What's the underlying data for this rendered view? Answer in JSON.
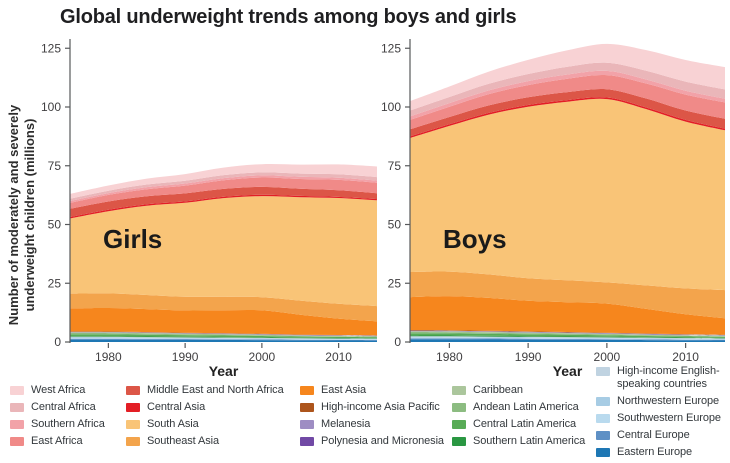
{
  "title": "Global underweight trends among boys and girls",
  "axes": {
    "ylabel_lines": [
      "Number of moderately and severely",
      "underweight children (millions)"
    ],
    "xlabel": "Year"
  },
  "chart_data": {
    "type": "area",
    "stacked": true,
    "title": "Global underweight trends among boys and girls",
    "xlabel": "Year",
    "ylabel": "Number of moderately and severely underweight children (millions)",
    "grid": false,
    "legend_position": "bottom",
    "x": [
      1975,
      1980,
      1985,
      1990,
      1995,
      2000,
      2005,
      2010,
      2015
    ],
    "x_ticks": [
      1980,
      1990,
      2000,
      2010
    ],
    "y_ticks": [
      0,
      25,
      50,
      75,
      100,
      125
    ],
    "ylim": [
      0,
      130
    ],
    "stack_order": "regions listed top-of-stack first; last region is bottom of stack",
    "regions": [
      {
        "name": "West Africa",
        "color": "#f8d2d4"
      },
      {
        "name": "Central Africa",
        "color": "#eab6b9"
      },
      {
        "name": "Southern Africa",
        "color": "#f2a2a8"
      },
      {
        "name": "East Africa",
        "color": "#f08a88"
      },
      {
        "name": "Middle East and North Africa",
        "color": "#dc5647"
      },
      {
        "name": "Central Asia",
        "color": "#e31e25"
      },
      {
        "name": "South Asia",
        "color": "#f9c477"
      },
      {
        "name": "Southeast Asia",
        "color": "#f3a44c"
      },
      {
        "name": "East Asia",
        "color": "#f6861d"
      },
      {
        "name": "High-income Asia Pacific",
        "color": "#ad551c"
      },
      {
        "name": "Melanesia",
        "color": "#9e8dc3"
      },
      {
        "name": "Polynesia and Micronesia",
        "color": "#7149a5"
      },
      {
        "name": "Caribbean",
        "color": "#abc69c"
      },
      {
        "name": "Andean Latin America",
        "color": "#8cbc81"
      },
      {
        "name": "Central Latin America",
        "color": "#58ab56"
      },
      {
        "name": "Southern Latin America",
        "color": "#2a9742"
      },
      {
        "name": "High-income English-speaking countries",
        "color": "#c0d3e1"
      },
      {
        "name": "Northwestern Europe",
        "color": "#a7cce4"
      },
      {
        "name": "Southwestern Europe",
        "color": "#b9daee"
      },
      {
        "name": "Central Europe",
        "color": "#5e90c5"
      },
      {
        "name": "Eastern Europe",
        "color": "#1e77b4"
      }
    ],
    "charts": [
      {
        "label": "Girls",
        "values": [
          [
            2.0,
            2.2,
            2.5,
            2.8,
            3.2,
            3.5,
            3.8,
            4.2,
            4.5
          ],
          [
            1.0,
            1.0,
            1.1,
            1.2,
            1.3,
            1.3,
            1.4,
            1.5,
            1.5
          ],
          [
            0.8,
            0.8,
            0.9,
            0.9,
            0.9,
            0.9,
            0.9,
            0.9,
            0.9
          ],
          [
            2.5,
            2.8,
            3.0,
            3.3,
            3.7,
            4.0,
            4.2,
            4.4,
            4.5
          ],
          [
            3.5,
            3.5,
            3.4,
            3.4,
            3.3,
            3.3,
            3.0,
            2.8,
            2.5
          ],
          [
            0.6,
            0.6,
            0.6,
            0.6,
            0.6,
            0.6,
            0.55,
            0.5,
            0.5
          ],
          [
            32,
            35,
            38,
            40,
            42,
            43,
            44,
            45,
            45
          ],
          [
            6.3,
            6.2,
            6.0,
            5.8,
            5.7,
            5.6,
            6.0,
            6.3,
            6.5
          ],
          [
            9.8,
            10.0,
            9.8,
            9.5,
            9.8,
            10.0,
            8.5,
            7.0,
            6.0
          ],
          [
            0.2,
            0.2,
            0.18,
            0.15,
            0.13,
            0.12,
            0.1,
            0.1,
            0.1
          ],
          [
            0.15,
            0.15,
            0.16,
            0.17,
            0.18,
            0.19,
            0.2,
            0.2,
            0.2
          ],
          [
            0.05,
            0.05,
            0.05,
            0.05,
            0.05,
            0.05,
            0.05,
            0.05,
            0.05
          ],
          [
            0.3,
            0.3,
            0.28,
            0.26,
            0.24,
            0.22,
            0.2,
            0.18,
            0.15
          ],
          [
            0.5,
            0.5,
            0.45,
            0.4,
            0.38,
            0.35,
            0.3,
            0.28,
            0.25
          ],
          [
            0.8,
            0.8,
            0.75,
            0.7,
            0.65,
            0.6,
            0.5,
            0.45,
            0.4
          ],
          [
            0.3,
            0.3,
            0.28,
            0.26,
            0.24,
            0.22,
            0.2,
            0.2,
            0.2
          ],
          [
            0.3,
            0.3,
            0.3,
            0.28,
            0.28,
            0.26,
            0.25,
            0.25,
            0.25
          ],
          [
            0.2,
            0.2,
            0.18,
            0.17,
            0.16,
            0.15,
            0.15,
            0.14,
            0.14
          ],
          [
            0.3,
            0.28,
            0.26,
            0.25,
            0.24,
            0.22,
            0.2,
            0.2,
            0.2
          ],
          [
            0.4,
            0.4,
            0.38,
            0.36,
            0.33,
            0.3,
            0.28,
            0.26,
            0.25
          ],
          [
            1.0,
            1.0,
            0.95,
            0.9,
            0.85,
            0.8,
            0.7,
            0.65,
            0.6
          ]
        ]
      },
      {
        "label": "Boys",
        "values": [
          [
            4.0,
            4.5,
            5.2,
            6.0,
            7.0,
            8.0,
            8.8,
            9.2,
            9.5
          ],
          [
            2.5,
            2.6,
            2.8,
            3.0,
            3.3,
            3.5,
            3.7,
            3.9,
            4.0
          ],
          [
            1.5,
            1.5,
            1.6,
            1.7,
            1.8,
            1.8,
            1.7,
            1.6,
            1.5
          ],
          [
            4.0,
            4.4,
            4.8,
            5.2,
            5.7,
            6.0,
            6.4,
            6.8,
            7.0
          ],
          [
            3.0,
            3.1,
            3.2,
            3.3,
            3.4,
            3.5,
            3.8,
            4.0,
            4.2
          ],
          [
            0.7,
            0.7,
            0.7,
            0.7,
            0.7,
            0.7,
            0.7,
            0.7,
            0.7
          ],
          [
            57,
            62,
            68,
            73,
            76,
            78,
            75,
            71,
            68
          ],
          [
            10.7,
            10.4,
            10.0,
            9.6,
            9.3,
            9.0,
            10.0,
            11.0,
            12.0
          ],
          [
            14.0,
            14.5,
            14.0,
            13.0,
            12.7,
            12.4,
            10.5,
            8.5,
            7.0
          ],
          [
            0.25,
            0.25,
            0.22,
            0.2,
            0.18,
            0.15,
            0.13,
            0.12,
            0.1
          ],
          [
            0.2,
            0.2,
            0.21,
            0.22,
            0.23,
            0.24,
            0.25,
            0.25,
            0.25
          ],
          [
            0.06,
            0.06,
            0.06,
            0.06,
            0.06,
            0.06,
            0.06,
            0.06,
            0.06
          ],
          [
            0.35,
            0.34,
            0.32,
            0.3,
            0.28,
            0.26,
            0.24,
            0.2,
            0.18
          ],
          [
            0.55,
            0.54,
            0.5,
            0.46,
            0.42,
            0.4,
            0.35,
            0.3,
            0.28
          ],
          [
            0.9,
            0.9,
            0.85,
            0.8,
            0.72,
            0.65,
            0.55,
            0.5,
            0.45
          ],
          [
            0.35,
            0.34,
            0.32,
            0.3,
            0.28,
            0.26,
            0.24,
            0.22,
            0.2
          ],
          [
            0.35,
            0.35,
            0.34,
            0.33,
            0.32,
            0.3,
            0.3,
            0.28,
            0.28
          ],
          [
            0.22,
            0.22,
            0.2,
            0.19,
            0.18,
            0.17,
            0.16,
            0.16,
            0.15
          ],
          [
            0.32,
            0.3,
            0.28,
            0.27,
            0.26,
            0.24,
            0.22,
            0.22,
            0.2
          ],
          [
            0.45,
            0.44,
            0.42,
            0.4,
            0.36,
            0.33,
            0.3,
            0.28,
            0.27
          ],
          [
            1.1,
            1.1,
            1.05,
            1.0,
            0.95,
            0.9,
            0.8,
            0.7,
            0.65
          ]
        ]
      }
    ]
  },
  "legend": {
    "columns": [
      [
        0,
        1,
        2,
        3
      ],
      [
        4,
        5,
        6,
        7
      ],
      [
        8,
        9,
        10,
        11
      ],
      [
        12,
        13,
        14,
        15
      ],
      [
        16,
        17,
        18,
        19,
        20
      ]
    ]
  }
}
